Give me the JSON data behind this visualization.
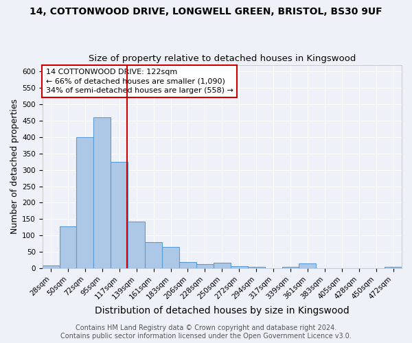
{
  "title": "14, COTTONWOOD DRIVE, LONGWELL GREEN, BRISTOL, BS30 9UF",
  "subtitle": "Size of property relative to detached houses in Kingswood",
  "xlabel": "Distribution of detached houses by size in Kingswood",
  "ylabel": "Number of detached properties",
  "bar_labels": [
    "28sqm",
    "50sqm",
    "72sqm",
    "95sqm",
    "117sqm",
    "139sqm",
    "161sqm",
    "183sqm",
    "206sqm",
    "228sqm",
    "250sqm",
    "272sqm",
    "294sqm",
    "317sqm",
    "339sqm",
    "361sqm",
    "383sqm",
    "405sqm",
    "428sqm",
    "450sqm",
    "472sqm"
  ],
  "bar_values": [
    8,
    127,
    400,
    460,
    325,
    143,
    79,
    65,
    20,
    13,
    16,
    7,
    5,
    0,
    5,
    14,
    0,
    0,
    0,
    0,
    5
  ],
  "bar_color": "#adc8e6",
  "bar_edge_color": "#5b9bd5",
  "red_line_index": 4.45,
  "annotation_line1": "14 COTTONWOOD DRIVE: 122sqm",
  "annotation_line2": "← 66% of detached houses are smaller (1,090)",
  "annotation_line3": "34% of semi-detached houses are larger (558) →",
  "annotation_box_color": "white",
  "annotation_box_edge_color": "#cc0000",
  "red_line_color": "#cc0000",
  "ylim": [
    0,
    620
  ],
  "yticks": [
    0,
    50,
    100,
    150,
    200,
    250,
    300,
    350,
    400,
    450,
    500,
    550,
    600
  ],
  "footer_line1": "Contains HM Land Registry data © Crown copyright and database right 2024.",
  "footer_line2": "Contains public sector information licensed under the Open Government Licence v3.0.",
  "background_color": "#eef2f8",
  "grid_color": "#ffffff",
  "title_fontsize": 10,
  "subtitle_fontsize": 9.5,
  "xlabel_fontsize": 10,
  "ylabel_fontsize": 9,
  "tick_fontsize": 7.5,
  "annotation_fontsize": 8,
  "footer_fontsize": 7
}
